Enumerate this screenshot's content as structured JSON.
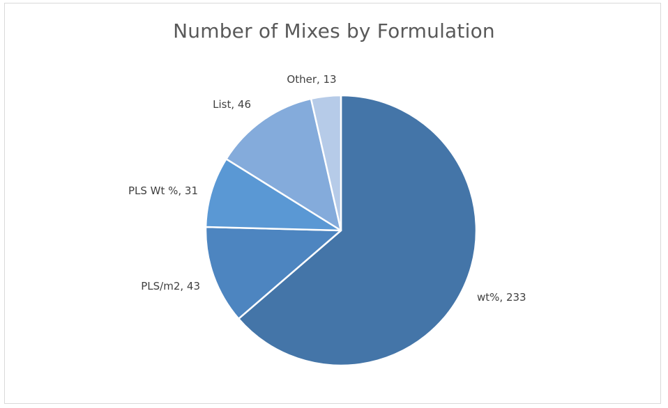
{
  "chart_data": {
    "type": "pie",
    "title": "Number of Mixes by Formulation",
    "slices": [
      {
        "label": "wt%",
        "value": 233,
        "color": "#4475a8"
      },
      {
        "label": "PLS/m2",
        "value": 43,
        "color": "#4d85c0"
      },
      {
        "label": "PLS Wt %",
        "value": 31,
        "color": "#5a98d4"
      },
      {
        "label": "List",
        "value": 46,
        "color": "#84abdb"
      },
      {
        "label": "Other",
        "value": 13,
        "color": "#b6cbe8"
      }
    ],
    "data_labels": [
      "wt%, 233",
      "PLS/m2, 43",
      "PLS Wt %, 31",
      "List, 46",
      "Other, 13"
    ],
    "legend": "none",
    "start": "top",
    "direction": "clockwise",
    "border_color": "#ffffff"
  }
}
